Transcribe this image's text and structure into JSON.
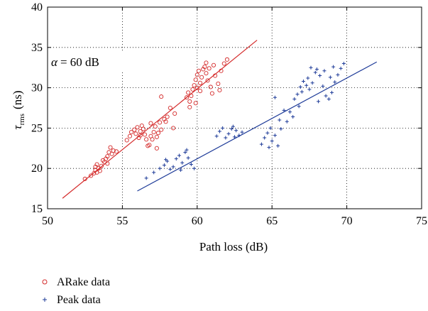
{
  "chart_data": {
    "type": "scatter",
    "xlabel": "Path loss (dB)",
    "ylabel": {
      "main": "τ",
      "sub": "rms",
      "unit": "(ns)"
    },
    "annotation": {
      "symbol": "α",
      "text": "= 60 dB"
    },
    "xlim": [
      50,
      75
    ],
    "ylim": [
      15,
      40
    ],
    "xticks": [
      50,
      55,
      60,
      65,
      70,
      75
    ],
    "yticks": [
      15,
      20,
      25,
      30,
      35,
      40
    ],
    "grid": true,
    "legend_position": "below-left",
    "series": [
      {
        "name": "ARake data",
        "marker": "circle",
        "color": "#d42a2a",
        "points": [
          [
            52.5,
            18.7
          ],
          [
            52.9,
            19.1
          ],
          [
            53.1,
            19.4
          ],
          [
            53.2,
            19.8
          ],
          [
            53.2,
            20.2
          ],
          [
            53.3,
            20.5
          ],
          [
            53.4,
            20.0
          ],
          [
            53.5,
            19.7
          ],
          [
            53.3,
            19.5
          ],
          [
            53.6,
            20.3
          ],
          [
            53.8,
            20.8
          ],
          [
            53.9,
            21.2
          ],
          [
            54.0,
            21.5
          ],
          [
            54.1,
            22.0
          ],
          [
            54.2,
            22.6
          ],
          [
            54.3,
            21.8
          ],
          [
            54.4,
            22.2
          ],
          [
            54.6,
            22.1
          ],
          [
            53.7,
            21.0
          ],
          [
            54.0,
            20.6
          ],
          [
            55.3,
            23.5
          ],
          [
            55.5,
            24.0
          ],
          [
            55.6,
            24.5
          ],
          [
            55.8,
            24.8
          ],
          [
            55.9,
            24.3
          ],
          [
            56.0,
            25.1
          ],
          [
            56.1,
            23.8
          ],
          [
            56.2,
            24.6
          ],
          [
            56.3,
            25.3
          ],
          [
            56.4,
            24.9
          ],
          [
            56.5,
            24.2
          ],
          [
            56.6,
            23.6
          ],
          [
            56.7,
            22.8
          ],
          [
            56.8,
            22.9
          ],
          [
            56.9,
            24.0
          ],
          [
            57.0,
            23.6
          ],
          [
            57.1,
            24.5
          ],
          [
            57.2,
            25.2
          ],
          [
            57.3,
            23.9
          ],
          [
            57.4,
            24.4
          ],
          [
            57.5,
            25.7
          ],
          [
            57.6,
            24.8
          ],
          [
            57.8,
            26.1
          ],
          [
            57.9,
            25.8
          ],
          [
            58.0,
            26.4
          ],
          [
            58.2,
            27.5
          ],
          [
            58.4,
            25.0
          ],
          [
            58.5,
            26.8
          ],
          [
            57.6,
            28.9
          ],
          [
            57.3,
            22.5
          ],
          [
            56.9,
            25.6
          ],
          [
            56.2,
            24.1
          ],
          [
            59.3,
            28.8
          ],
          [
            59.4,
            29.4
          ],
          [
            59.5,
            28.3
          ],
          [
            59.6,
            29.0
          ],
          [
            59.7,
            29.8
          ],
          [
            59.8,
            30.3
          ],
          [
            59.9,
            31.0
          ],
          [
            60.0,
            31.6
          ],
          [
            60.1,
            32.1
          ],
          [
            60.2,
            30.6
          ],
          [
            60.3,
            31.3
          ],
          [
            60.4,
            32.3
          ],
          [
            60.5,
            32.6
          ],
          [
            60.6,
            31.8
          ],
          [
            60.7,
            30.9
          ],
          [
            60.8,
            32.4
          ],
          [
            60.9,
            30.1
          ],
          [
            61.0,
            29.3
          ],
          [
            61.2,
            31.5
          ],
          [
            61.4,
            30.5
          ],
          [
            61.6,
            32.1
          ],
          [
            61.8,
            33.0
          ],
          [
            62.0,
            33.5
          ],
          [
            60.2,
            29.6
          ],
          [
            59.9,
            28.1
          ],
          [
            60.6,
            33.1
          ],
          [
            61.1,
            32.8
          ],
          [
            60.0,
            30.0
          ],
          [
            59.5,
            27.6
          ],
          [
            61.5,
            29.7
          ]
        ],
        "fit": {
          "x": [
            51.0,
            64.0
          ],
          "y": [
            16.3,
            35.9
          ]
        }
      },
      {
        "name": "Peak data",
        "marker": "plus",
        "color": "#1f3c99",
        "points": [
          [
            56.6,
            18.8
          ],
          [
            57.1,
            19.5
          ],
          [
            57.5,
            20.0
          ],
          [
            57.8,
            20.4
          ],
          [
            58.0,
            20.9
          ],
          [
            58.2,
            19.9
          ],
          [
            58.4,
            20.2
          ],
          [
            58.6,
            21.2
          ],
          [
            58.8,
            21.6
          ],
          [
            59.0,
            20.7
          ],
          [
            59.2,
            22.0
          ],
          [
            59.4,
            21.3
          ],
          [
            59.6,
            20.5
          ],
          [
            59.8,
            20.0
          ],
          [
            59.3,
            22.3
          ],
          [
            58.9,
            19.8
          ],
          [
            57.9,
            21.1
          ],
          [
            61.3,
            24.0
          ],
          [
            61.5,
            24.6
          ],
          [
            61.7,
            25.0
          ],
          [
            61.9,
            23.8
          ],
          [
            62.1,
            24.3
          ],
          [
            62.3,
            24.9
          ],
          [
            62.5,
            23.9
          ],
          [
            62.6,
            24.7
          ],
          [
            62.8,
            24.1
          ],
          [
            63.0,
            24.5
          ],
          [
            62.4,
            25.2
          ],
          [
            64.3,
            23.0
          ],
          [
            64.5,
            23.8
          ],
          [
            64.7,
            24.4
          ],
          [
            64.9,
            25.0
          ],
          [
            65.0,
            23.4
          ],
          [
            65.2,
            24.1
          ],
          [
            65.4,
            22.8
          ],
          [
            65.5,
            26.0
          ],
          [
            65.8,
            27.2
          ],
          [
            66.0,
            25.8
          ],
          [
            66.2,
            27.0
          ],
          [
            65.2,
            28.8
          ],
          [
            64.8,
            22.6
          ],
          [
            65.6,
            24.9
          ],
          [
            66.4,
            26.4
          ],
          [
            66.5,
            28.6
          ],
          [
            66.7,
            29.2
          ],
          [
            66.9,
            30.1
          ],
          [
            67.1,
            30.8
          ],
          [
            67.3,
            30.3
          ],
          [
            67.4,
            31.2
          ],
          [
            67.5,
            29.8
          ],
          [
            67.7,
            30.6
          ],
          [
            67.9,
            31.9
          ],
          [
            68.0,
            32.3
          ],
          [
            68.2,
            31.5
          ],
          [
            68.4,
            30.2
          ],
          [
            68.6,
            29.0
          ],
          [
            68.8,
            28.6
          ],
          [
            69.0,
            29.4
          ],
          [
            69.2,
            30.7
          ],
          [
            69.4,
            31.6
          ],
          [
            69.6,
            32.4
          ],
          [
            69.8,
            33.0
          ],
          [
            68.5,
            32.1
          ],
          [
            67.0,
            29.5
          ],
          [
            68.1,
            28.3
          ],
          [
            69.1,
            32.6
          ],
          [
            66.8,
            27.7
          ],
          [
            67.6,
            32.5
          ],
          [
            68.9,
            31.3
          ]
        ],
        "fit": {
          "x": [
            56.0,
            72.0
          ],
          "y": [
            17.2,
            33.2
          ]
        }
      }
    ]
  }
}
